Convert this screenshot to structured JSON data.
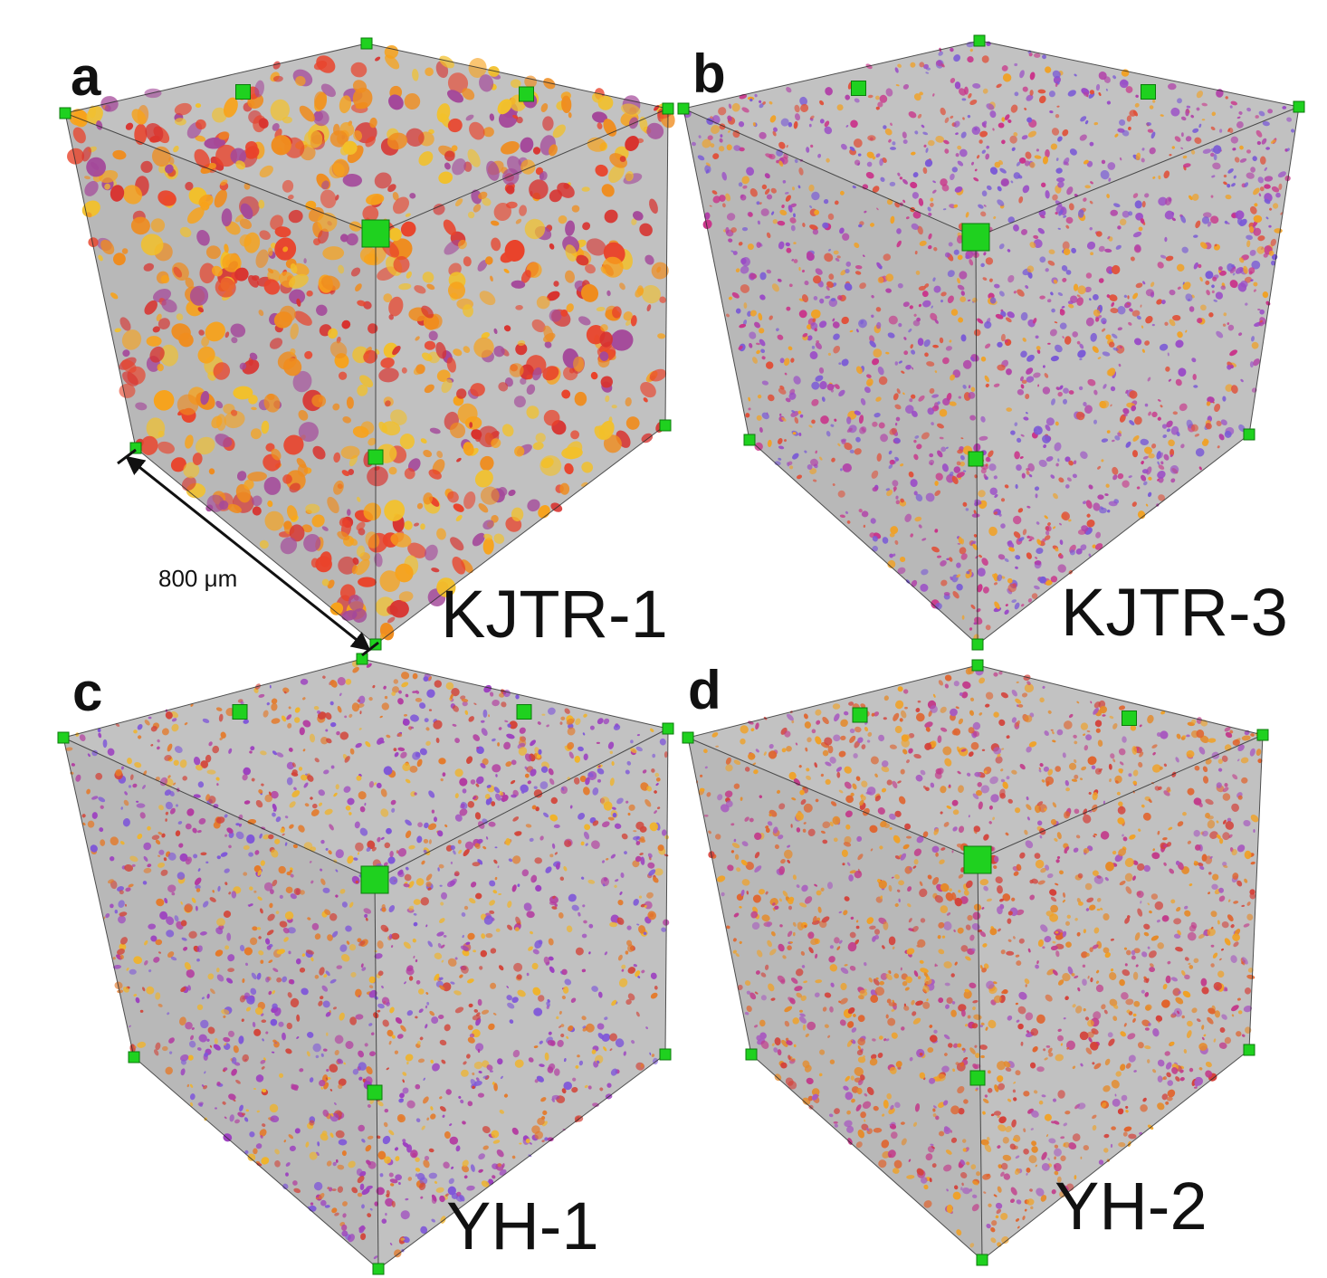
{
  "figure": {
    "panels": [
      {
        "letter": "a",
        "label": "KJTR-1",
        "palette": [
          "#f7a21b",
          "#ef8c1e",
          "#e9432b",
          "#d8332f",
          "#f2c02a",
          "#a4489a"
        ]
      },
      {
        "letter": "b",
        "label": "KJTR-3",
        "palette": [
          "#c9348a",
          "#e0513a",
          "#9a4bc7",
          "#f0a126",
          "#b13fa8",
          "#7a5ad6"
        ]
      },
      {
        "letter": "c",
        "label": "YH-1",
        "palette": [
          "#b33aa0",
          "#7e56d9",
          "#d2453a",
          "#e47a2a",
          "#9c3fc0",
          "#f0b32a"
        ]
      },
      {
        "letter": "d",
        "label": "YH-2",
        "palette": [
          "#e0642e",
          "#d4413a",
          "#f0a126",
          "#c23b8a",
          "#a85bbf",
          "#e58a2a"
        ]
      }
    ],
    "scale_bar": {
      "text": "800 μm"
    },
    "colors": {
      "box_face": "#b9b9b9",
      "box_edge": "#2a2a2a",
      "marker": "#1fd11f"
    }
  }
}
